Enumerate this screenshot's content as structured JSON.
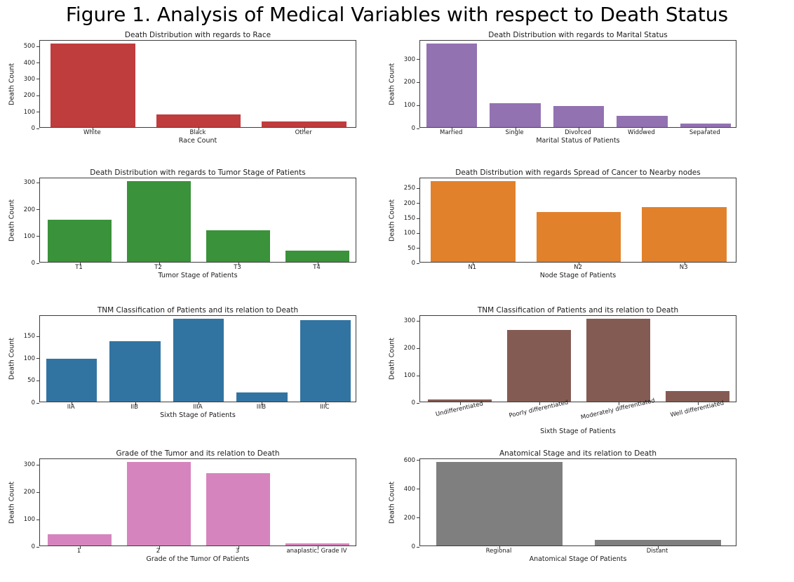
{
  "figure": {
    "title": "Figure 1. Analysis of Medical Variables with respect to Death Status"
  },
  "chart_data": [
    {
      "type": "bar",
      "title": "Death Distribution with regards to Race",
      "xlabel": "Race Count",
      "ylabel": "Death Count",
      "categories": [
        "White",
        "Black",
        "Other"
      ],
      "values": [
        510,
        76,
        36
      ],
      "yticks": [
        0,
        100,
        200,
        300,
        400,
        500
      ],
      "ylim": [
        0,
        535
      ],
      "color": "#c03d3e",
      "rotated_xticklabels": false,
      "grid": false,
      "legend": "none"
    },
    {
      "type": "bar",
      "title": "Death Distribution with regards to Marital Status",
      "xlabel": "Marital Status of Patients",
      "ylabel": "Death Count",
      "categories": [
        "Married",
        "Single",
        "Divorced",
        "Widowed",
        "Separated"
      ],
      "values": [
        362,
        104,
        92,
        48,
        15
      ],
      "yticks": [
        0,
        100,
        200,
        300
      ],
      "ylim": [
        0,
        381
      ],
      "color": "#9372b2",
      "rotated_xticklabels": false,
      "grid": false,
      "legend": "none"
    },
    {
      "type": "bar",
      "title": "Death Distribution with regards to Tumor Stage of Patients",
      "xlabel": "Tumor Stage of Patients",
      "ylabel": "Death Count",
      "categories": [
        "T1",
        "T2",
        "T3",
        "T4"
      ],
      "values": [
        158,
        302,
        117,
        42
      ],
      "yticks": [
        0,
        100,
        200,
        300
      ],
      "ylim": [
        0,
        317
      ],
      "color": "#3a923a",
      "rotated_xticklabels": false,
      "grid": false,
      "legend": "none"
    },
    {
      "type": "bar",
      "title": "Death Distribution with regards Spread of Cancer to Nearby nodes",
      "xlabel": "Node Stage of Patients",
      "ylabel": "Death Count",
      "categories": [
        "N1",
        "N2",
        "N3"
      ],
      "values": [
        270,
        166,
        183
      ],
      "yticks": [
        0,
        50,
        100,
        150,
        200,
        250
      ],
      "ylim": [
        0,
        284
      ],
      "color": "#e1812c",
      "rotated_xticklabels": false,
      "grid": false,
      "legend": "none"
    },
    {
      "type": "bar",
      "title": "TNM Classification of Patients and its relation to Death",
      "xlabel": "Sixth Stage of Patients",
      "ylabel": "Death Count",
      "categories": [
        "IIA",
        "IIB",
        "IIIA",
        "IIIB",
        "IIIC"
      ],
      "values": [
        97,
        136,
        186,
        20,
        183
      ],
      "yticks": [
        0,
        50,
        100,
        150
      ],
      "ylim": [
        0,
        196
      ],
      "color": "#3274a1",
      "rotated_xticklabels": false,
      "grid": false,
      "legend": "none"
    },
    {
      "type": "bar",
      "title": "TNM Classification of Patients and its relation to Death",
      "xlabel": "Sixth Stage of Patients",
      "ylabel": "Death Count",
      "categories": [
        "Undifferentiated",
        "Poorly differentiated",
        "Moderately differentiated",
        "Well differentiated"
      ],
      "values": [
        9,
        263,
        304,
        39
      ],
      "yticks": [
        0,
        100,
        200,
        300
      ],
      "ylim": [
        0,
        319
      ],
      "color": "#845b53",
      "rotated_xticklabels": true,
      "grid": false,
      "legend": "none"
    },
    {
      "type": "bar",
      "title": "Grade of the Tumor and its relation to Death",
      "xlabel": "Grade of the Tumor Of Patients",
      "ylabel": "Death Count",
      "categories": [
        "1",
        "2",
        "3",
        "anaplastic; Grade IV"
      ],
      "values": [
        40,
        306,
        264,
        9
      ],
      "yticks": [
        0,
        100,
        200,
        300
      ],
      "ylim": [
        0,
        321
      ],
      "color": "#d684bd",
      "rotated_xticklabels": false,
      "grid": false,
      "legend": "none"
    },
    {
      "type": "bar",
      "title": "Anatomical Stage and its relation to Death",
      "xlabel": "Anatomical Stage Of Patients",
      "ylabel": "Death Count",
      "categories": [
        "Regional",
        "Distant"
      ],
      "values": [
        580,
        38
      ],
      "yticks": [
        0,
        200,
        400,
        600
      ],
      "ylim": [
        0,
        609
      ],
      "color": "#7f7f7f",
      "rotated_xticklabels": false,
      "grid": false,
      "legend": "none"
    }
  ]
}
